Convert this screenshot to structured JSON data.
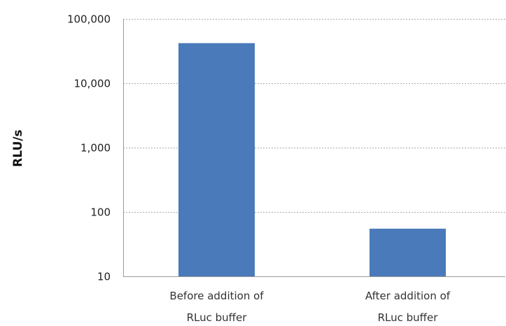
{
  "chart_data": {
    "type": "bar",
    "title": "",
    "xlabel": "",
    "ylabel": "RLU/s",
    "y_scale": "log",
    "ylim": [
      10,
      100000
    ],
    "y_ticks": [
      10,
      100,
      1000,
      10000,
      100000
    ],
    "y_tick_labels": [
      "10",
      "100",
      "1,000",
      "10,000",
      "100,000"
    ],
    "grid": "horizontal dashed",
    "legend": "none",
    "categories": [
      [
        "Before addition of",
        "RLuc buffer"
      ],
      [
        "After addition of",
        "RLuc buffer"
      ]
    ],
    "values": [
      42000,
      55
    ],
    "colors": {
      "bar": "#4a7ab9"
    }
  }
}
